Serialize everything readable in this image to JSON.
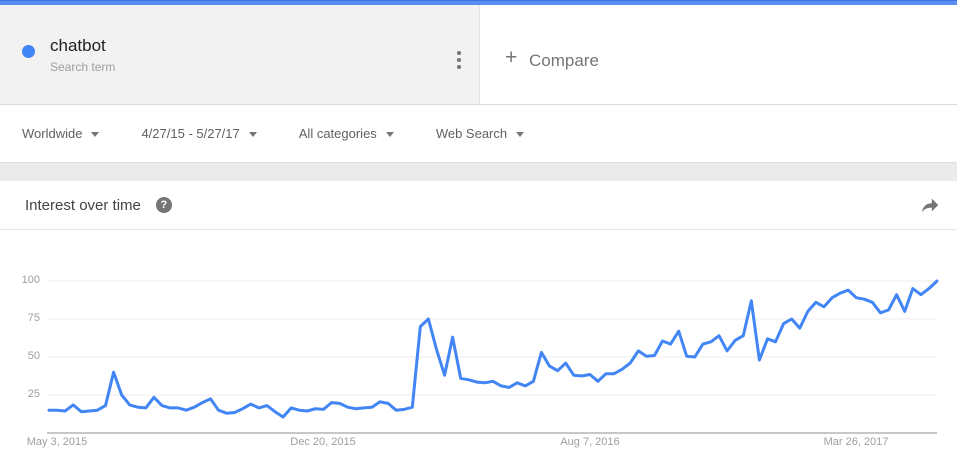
{
  "topbar": {
    "color": "#5b8ef5"
  },
  "term_card": {
    "term": "chatbot",
    "subtitle": "Search term",
    "dot_color": "#4285f4"
  },
  "compare": {
    "plus_label": "+",
    "label": "Compare"
  },
  "filters": [
    {
      "label": "Worldwide"
    },
    {
      "label": "4/27/15 - 5/27/17"
    },
    {
      "label": "All categories"
    },
    {
      "label": "Web Search"
    }
  ],
  "chart_header": {
    "title": "Interest over time",
    "help_glyph": "?"
  },
  "chart_data": {
    "type": "line",
    "title": "Interest over time",
    "series_name": "chatbot",
    "line_color": "#4285f4",
    "grid": true,
    "ylim": [
      0,
      100
    ],
    "y_ticks": [
      {
        "label": "100",
        "value": 100
      },
      {
        "label": "75",
        "value": 75
      },
      {
        "label": "50",
        "value": 50
      },
      {
        "label": "25",
        "value": 25
      }
    ],
    "x_ticks": [
      {
        "label": "May 3, 2015",
        "week": 1
      },
      {
        "label": "Dec 20, 2015",
        "week": 34
      },
      {
        "label": "Aug 7, 2016",
        "week": 67
      },
      {
        "label": "Mar 26, 2017",
        "week": 100
      }
    ],
    "x_unit": "week",
    "values": [
      15,
      15,
      14.5,
      18.5,
      14,
      14.5,
      15,
      18,
      40,
      25,
      18.5,
      17,
      16.5,
      23.5,
      18,
      16.5,
      16.5,
      15,
      17,
      20,
      22.5,
      15,
      13,
      13.5,
      16,
      19,
      16.5,
      18,
      14,
      10.5,
      16.5,
      15,
      14.5,
      16,
      15.5,
      20,
      19.5,
      17,
      16,
      16.5,
      17,
      20.5,
      19.5,
      15,
      15.5,
      17,
      70,
      75,
      55,
      38,
      63,
      36,
      35,
      33.5,
      33,
      34,
      31,
      30,
      33,
      31,
      34,
      53,
      44,
      41,
      46,
      38,
      37.5,
      38.5,
      34,
      39,
      39,
      42,
      46,
      54,
      50.5,
      51,
      60.5,
      58.5,
      67,
      50.5,
      50,
      58.5,
      60,
      64,
      54,
      61,
      64,
      87,
      48,
      62,
      60,
      72,
      75,
      69,
      80,
      86,
      83,
      89,
      92,
      94,
      89,
      88,
      86,
      79,
      81,
      91,
      80,
      95,
      91,
      95,
      100
    ]
  }
}
